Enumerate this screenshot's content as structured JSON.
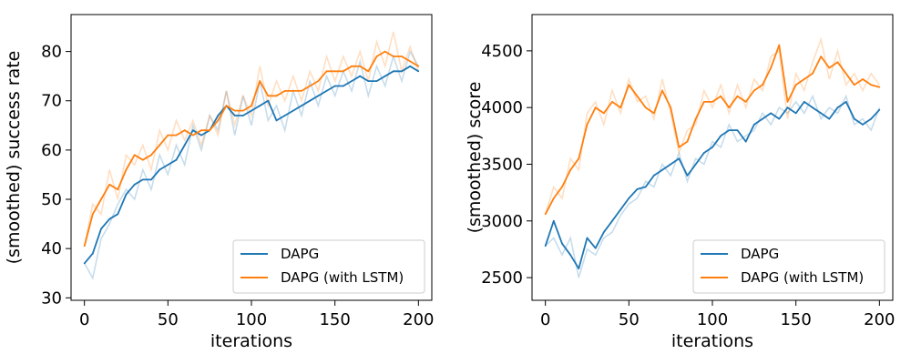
{
  "colors": {
    "series1": "#1f77b4",
    "series2": "#ff7f0e",
    "axes": "#000000",
    "legend_border": "#cccccc"
  },
  "chart_data": [
    {
      "type": "line",
      "xlabel": "iterations",
      "ylabel": "(smoothed) success rate",
      "xlim": [
        -8,
        208
      ],
      "ylim": [
        29.5,
        87.5
      ],
      "xticks": [
        0,
        50,
        100,
        150,
        200
      ],
      "yticks": [
        30,
        40,
        50,
        60,
        70,
        80
      ],
      "grid": false,
      "legend": {
        "position": "lower-right",
        "entries": [
          "DAPG",
          "DAPG (with LSTM)"
        ]
      },
      "series": [
        {
          "name": "DAPG",
          "x": [
            0,
            5,
            10,
            15,
            20,
            25,
            30,
            35,
            40,
            45,
            50,
            55,
            60,
            65,
            70,
            75,
            80,
            85,
            90,
            95,
            100,
            105,
            110,
            115,
            120,
            125,
            130,
            135,
            140,
            145,
            150,
            155,
            160,
            165,
            170,
            175,
            180,
            185,
            190,
            195,
            200
          ],
          "y": [
            37,
            39,
            44,
            46,
            47,
            51,
            53,
            54,
            54,
            56,
            57,
            58,
            61,
            64,
            63,
            64,
            67,
            69,
            67,
            67,
            68,
            69,
            70,
            66,
            67,
            68,
            69,
            70,
            71,
            72,
            73,
            73,
            74,
            75,
            74,
            74,
            75,
            76,
            76,
            77,
            76
          ],
          "raw_y": [
            37,
            34,
            42,
            45,
            49,
            52,
            50,
            56,
            52,
            59,
            55,
            61,
            57,
            65,
            60,
            67,
            64,
            72,
            63,
            71,
            65,
            74,
            66,
            69,
            64,
            72,
            67,
            74,
            69,
            75,
            71,
            76,
            72,
            78,
            71,
            77,
            73,
            79,
            74,
            80,
            77
          ]
        },
        {
          "name": "DAPG (with LSTM)",
          "x": [
            0,
            5,
            10,
            15,
            20,
            25,
            30,
            35,
            40,
            45,
            50,
            55,
            60,
            65,
            70,
            75,
            80,
            85,
            90,
            95,
            100,
            105,
            110,
            115,
            120,
            125,
            130,
            135,
            140,
            145,
            150,
            155,
            160,
            165,
            170,
            175,
            180,
            185,
            190,
            195,
            200
          ],
          "y": [
            40.5,
            47,
            50,
            53,
            52,
            56,
            59,
            58,
            59,
            61,
            63,
            63,
            64,
            63,
            64,
            64,
            66,
            69,
            68,
            68,
            69,
            74,
            71,
            71,
            72,
            72,
            72,
            73,
            74,
            76,
            76,
            76,
            77,
            77,
            76,
            79,
            80,
            79,
            79,
            78,
            77
          ],
          "raw_y": [
            40.5,
            49,
            47,
            56,
            50,
            59,
            57,
            61,
            56,
            64,
            60,
            66,
            62,
            66,
            61,
            67,
            63,
            72,
            65,
            71,
            67,
            77,
            69,
            74,
            70,
            75,
            70,
            76,
            72,
            79,
            74,
            79,
            75,
            80,
            74,
            82,
            77,
            84,
            76,
            81,
            76
          ]
        }
      ]
    },
    {
      "type": "line",
      "xlabel": "iterations",
      "ylabel": "(smoothed) score",
      "xlim": [
        -8,
        208
      ],
      "ylim": [
        2300,
        4820
      ],
      "xticks": [
        0,
        50,
        100,
        150,
        200
      ],
      "yticks": [
        2500,
        3000,
        3500,
        4000,
        4500
      ],
      "grid": false,
      "legend": {
        "position": "lower-right",
        "entries": [
          "DAPG",
          "DAPG (with LSTM)"
        ]
      },
      "series": [
        {
          "name": "DAPG",
          "x": [
            0,
            5,
            10,
            15,
            20,
            25,
            30,
            35,
            40,
            45,
            50,
            55,
            60,
            65,
            70,
            75,
            80,
            85,
            90,
            95,
            100,
            105,
            110,
            115,
            120,
            125,
            130,
            135,
            140,
            145,
            150,
            155,
            160,
            165,
            170,
            175,
            180,
            185,
            190,
            195,
            200
          ],
          "y": [
            2780,
            3000,
            2800,
            2700,
            2580,
            2850,
            2760,
            2900,
            3000,
            3100,
            3200,
            3280,
            3300,
            3400,
            3450,
            3500,
            3550,
            3400,
            3500,
            3600,
            3650,
            3750,
            3800,
            3800,
            3700,
            3850,
            3900,
            3950,
            3900,
            4000,
            3950,
            4050,
            4000,
            3950,
            3900,
            4000,
            4050,
            3900,
            3850,
            3900,
            3980
          ],
          "raw_y": [
            2780,
            2850,
            2700,
            2850,
            2500,
            2750,
            2700,
            2850,
            2900,
            3050,
            3150,
            3200,
            3350,
            3300,
            3500,
            3400,
            3600,
            3350,
            3550,
            3500,
            3700,
            3650,
            3850,
            3700,
            3750,
            3800,
            3950,
            3850,
            4000,
            3950,
            4050,
            3950,
            4100,
            3900,
            4000,
            3950,
            4100,
            3850,
            3900,
            3800,
            4000
          ]
        },
        {
          "name": "DAPG (with LSTM)",
          "x": [
            0,
            5,
            10,
            15,
            20,
            25,
            30,
            35,
            40,
            45,
            50,
            55,
            60,
            65,
            70,
            75,
            80,
            85,
            90,
            95,
            100,
            105,
            110,
            115,
            120,
            125,
            130,
            135,
            140,
            145,
            150,
            155,
            160,
            165,
            170,
            175,
            180,
            185,
            190,
            195,
            200
          ],
          "y": [
            3060,
            3200,
            3300,
            3450,
            3550,
            3850,
            4000,
            3950,
            4050,
            4000,
            4200,
            4100,
            4000,
            3950,
            4150,
            4000,
            3650,
            3700,
            3900,
            4050,
            4050,
            4100,
            4000,
            4100,
            4050,
            4150,
            4200,
            4350,
            4550,
            4050,
            4200,
            4250,
            4300,
            4450,
            4350,
            4400,
            4300,
            4200,
            4250,
            4200,
            4180
          ],
          "raw_y": [
            3060,
            3300,
            3200,
            3550,
            3450,
            3950,
            4050,
            3850,
            4150,
            3950,
            4250,
            4050,
            4100,
            3900,
            4250,
            3950,
            3600,
            3800,
            3850,
            4150,
            4000,
            4200,
            3950,
            4200,
            4000,
            4250,
            4150,
            4450,
            4500,
            3900,
            4300,
            4150,
            4400,
            4600,
            4250,
            4500,
            4200,
            4300,
            4150,
            4300,
            4200
          ]
        }
      ]
    }
  ]
}
